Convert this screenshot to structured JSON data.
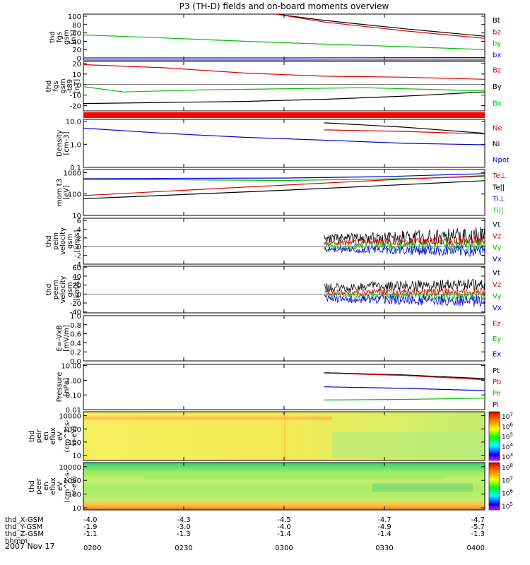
{
  "title": "P3 (TH-D) fields and on-board moments overview",
  "date": "2007 Nov 17",
  "chart_data": {
    "type": "line",
    "time_axis": {
      "ticks": [
        "0200",
        "0230",
        "0300",
        "0330",
        "0400"
      ],
      "range_hhmm": [
        "0200",
        "0400"
      ],
      "rows": [
        {
          "label": "thd_X-GSM",
          "values": [
            "-4.0",
            "-4.3",
            "-4.5",
            "-4.7",
            "-4.7"
          ]
        },
        {
          "label": "thd_Y-GSM",
          "values": [
            "-1.9",
            "-3.0",
            "-4.0",
            "-4.9",
            "-5.7"
          ]
        },
        {
          "label": "thd_Z-GSM",
          "values": [
            "-1.1",
            "-1.3",
            "-1.4",
            "-1.4",
            "-1.3"
          ]
        },
        {
          "label": "hhmm",
          "values": []
        }
      ]
    },
    "panels": [
      {
        "id": "fgs-gsm",
        "ylabel": [
          "thd",
          "fgs",
          "gsm",
          "[nT]"
        ],
        "scale": "linear",
        "ylim": [
          -5,
          105
        ],
        "ticks": [
          {
            "v": 100,
            "t": "100"
          },
          {
            "v": 80,
            "t": "80"
          },
          {
            "v": 60,
            "t": "60"
          },
          {
            "v": 40,
            "t": "40"
          },
          {
            "v": 20,
            "t": "20"
          },
          {
            "v": 0,
            "t": "0"
          }
        ],
        "legend": [
          {
            "t": "Bt",
            "c": "#000000"
          },
          {
            "t": "bz",
            "c": "#e00000"
          },
          {
            "t": "by",
            "c": "#00c000"
          },
          {
            "t": "bx",
            "c": "#0000e0"
          }
        ],
        "series": [
          {
            "name": "Bt",
            "color": "#000000",
            "x": [
              0.48,
              0.6,
              0.8,
              1.0
            ],
            "y": [
              105,
              90,
              70,
              52
            ]
          },
          {
            "name": "bz",
            "color": "#e00000",
            "x": [
              0.48,
              0.6,
              0.8,
              1.0
            ],
            "y": [
              105,
              86,
              65,
              47
            ]
          },
          {
            "name": "by",
            "color": "#00c000",
            "x": [
              0,
              0.2,
              0.4,
              0.6,
              0.8,
              1.0
            ],
            "y": [
              55,
              48,
              40,
              33,
              27,
              20
            ]
          },
          {
            "name": "bx",
            "color": "#0000e0",
            "x": [
              0,
              0.5,
              1.0
            ],
            "y": [
              0,
              0,
              1
            ]
          }
        ]
      },
      {
        "id": "fgs-gsm-tsf",
        "ylabel": [
          "thd",
          "fgs",
          "gsm",
          "-t89",
          "[nT]"
        ],
        "scale": "linear",
        "ylim": [
          -25,
          22
        ],
        "ticks": [
          {
            "v": 20,
            "t": "20"
          },
          {
            "v": 10,
            "t": "10"
          },
          {
            "v": 0,
            "t": "0"
          },
          {
            "v": -10,
            "t": "-10"
          },
          {
            "v": -20,
            "t": "-20"
          }
        ],
        "legend": [
          {
            "t": "Bz",
            "c": "#e00000"
          },
          {
            "t": "By",
            "c": "#000000"
          },
          {
            "t": "Bx",
            "c": "#00c000"
          }
        ],
        "series": [
          {
            "name": "Bz",
            "color": "#e00000",
            "x": [
              0,
              0.2,
              0.4,
              0.6,
              0.8,
              1.0
            ],
            "y": [
              19,
              16,
              11,
              8,
              7,
              5
            ]
          },
          {
            "name": "Bx",
            "color": "#00c000",
            "x": [
              0,
              0.1,
              0.3,
              0.5,
              0.7,
              1.0
            ],
            "y": [
              -2,
              -7,
              -5,
              -4,
              -3,
              -6
            ]
          },
          {
            "name": "By",
            "color": "#000000",
            "x": [
              0,
              0.2,
              0.4,
              0.6,
              0.8,
              1.0
            ],
            "y": [
              -18,
              -17,
              -16,
              -14,
              -11,
              -7
            ]
          }
        ]
      },
      {
        "id": "mode-bar",
        "ylabel": [],
        "scale": "bar",
        "ylim": [
          0,
          1
        ],
        "ticks": [],
        "legend": [],
        "series": []
      },
      {
        "id": "density",
        "ylabel": [
          "Density",
          "[cm-3]"
        ],
        "scale": "log",
        "ylim": [
          0.1,
          12
        ],
        "ticks": [
          {
            "v": 10,
            "t": "10.0"
          },
          {
            "v": 1,
            "t": "1.0"
          },
          {
            "v": 0.1,
            "t": "0.1"
          }
        ],
        "legend": [
          {
            "t": "Ne",
            "c": "#e00000"
          },
          {
            "t": "Ni",
            "c": "#000000"
          },
          {
            "t": "Npot",
            "c": "#0000e0"
          }
        ],
        "series": [
          {
            "name": "Npot",
            "color": "#0000e0",
            "x": [
              0,
              0.2,
              0.4,
              0.6,
              0.8,
              1.0
            ],
            "y": [
              5.0,
              3.0,
              2.0,
              1.5,
              1.1,
              0.95
            ]
          },
          {
            "name": "Ni",
            "color": "#000000",
            "x": [
              0.6,
              0.8,
              1.0
            ],
            "y": [
              8.5,
              5.5,
              3.0
            ]
          },
          {
            "name": "Ne",
            "color": "#e00000",
            "x": [
              0.6,
              0.8,
              1.0
            ],
            "y": [
              4.2,
              3.6,
              2.8
            ]
          }
        ]
      },
      {
        "id": "mom-temp",
        "ylabel": [
          "mom t3",
          "[eV]"
        ],
        "scale": "log",
        "ylim": [
          10,
          1400
        ],
        "ticks": [
          {
            "v": 1000,
            "t": "1000"
          },
          {
            "v": 100,
            "t": "100"
          },
          {
            "v": 10,
            "t": "10"
          }
        ],
        "legend": [
          {
            "t": "Te⊥",
            "c": "#e00000"
          },
          {
            "t": "Te||",
            "c": "#000000"
          },
          {
            "t": "Ti⊥",
            "c": "#0000e0"
          },
          {
            "t": "Ti||",
            "c": "#00c000"
          }
        ],
        "series": [
          {
            "name": "Ti⊥",
            "color": "#0000e0",
            "x": [
              0,
              0.25,
              0.5,
              0.75,
              1.0
            ],
            "y": [
              520,
              540,
              560,
              650,
              900
            ]
          },
          {
            "name": "Ti||",
            "color": "#00c000",
            "x": [
              0,
              0.25,
              0.5,
              0.75,
              1.0
            ],
            "y": [
              480,
              460,
              430,
              500,
              650
            ]
          },
          {
            "name": "Te⊥",
            "color": "#e00000",
            "x": [
              0,
              0.25,
              0.5,
              0.75,
              1.0
            ],
            "y": [
              85,
              150,
              260,
              450,
              720
            ]
          },
          {
            "name": "Te||",
            "color": "#000000",
            "x": [
              0,
              0.25,
              0.5,
              0.75,
              1.0
            ],
            "y": [
              60,
              95,
              150,
              250,
              420
            ]
          }
        ]
      },
      {
        "id": "peim-velocity",
        "ylabel": [
          "thd",
          "peim",
          "velocity",
          "gsm",
          "[km/s]"
        ],
        "scale": "linear",
        "ylim": [
          -4,
          6.5
        ],
        "ticks": [
          {
            "v": 6,
            "t": "6"
          },
          {
            "v": 4,
            "t": "4"
          },
          {
            "v": 2,
            "t": "2"
          },
          {
            "v": 0,
            "t": "0"
          },
          {
            "v": -2,
            "t": "-2"
          },
          {
            "v": -4,
            "t": "-4"
          }
        ],
        "legend": [
          {
            "t": "Vt",
            "c": "#000000"
          },
          {
            "t": "Vz",
            "c": "#e00000"
          },
          {
            "t": "Vy",
            "c": "#00c000"
          },
          {
            "t": "Vx",
            "c": "#0000e0"
          }
        ],
        "noisy": [
          {
            "name": "Vt",
            "color": "#000000",
            "x0": 0.6,
            "x1": 1.0,
            "mean0": 1.8,
            "mean1": 2.4,
            "amp0": 1.0,
            "amp1": 2.2
          },
          {
            "name": "Vz",
            "color": "#e00000",
            "x0": 0.6,
            "x1": 1.0,
            "mean0": 0.8,
            "mean1": 1.4,
            "amp0": 0.6,
            "amp1": 1.2
          },
          {
            "name": "Vy",
            "color": "#00c000",
            "x0": 0.6,
            "x1": 1.0,
            "mean0": 0.0,
            "mean1": 0.3,
            "amp0": 0.8,
            "amp1": 1.6
          },
          {
            "name": "Vx",
            "color": "#0000e0",
            "x0": 0.6,
            "x1": 1.0,
            "mean0": -0.6,
            "mean1": -1.0,
            "amp0": 0.6,
            "amp1": 1.5
          }
        ],
        "series": []
      },
      {
        "id": "peem-velocity",
        "ylabel": [
          "thd",
          "peem",
          "velocity",
          "gsm",
          "[km/s]"
        ],
        "scale": "linear",
        "ylim": [
          -42,
          62
        ],
        "ticks": [
          {
            "v": 60,
            "t": "60"
          },
          {
            "v": 40,
            "t": "40"
          },
          {
            "v": 20,
            "t": "20"
          },
          {
            "v": 0,
            "t": "0"
          },
          {
            "v": -20,
            "t": "-20"
          },
          {
            "v": -40,
            "t": "-40"
          }
        ],
        "legend": [
          {
            "t": "Vt",
            "c": "#000000"
          },
          {
            "t": "Vz",
            "c": "#e00000"
          },
          {
            "t": "Vy",
            "c": "#00c000"
          },
          {
            "t": "Vx",
            "c": "#0000e0"
          }
        ],
        "noisy": [
          {
            "name": "Vt",
            "color": "#000000",
            "x0": 0.6,
            "x1": 1.0,
            "mean0": 14,
            "mean1": 22,
            "amp0": 10,
            "amp1": 14
          },
          {
            "name": "Vz",
            "color": "#e00000",
            "x0": 0.6,
            "x1": 1.0,
            "mean0": 3,
            "mean1": 5,
            "amp0": 6,
            "amp1": 9
          },
          {
            "name": "Vy",
            "color": "#00c000",
            "x0": 0.6,
            "x1": 1.0,
            "mean0": -3,
            "mean1": -5,
            "amp0": 6,
            "amp1": 10
          },
          {
            "name": "Vx",
            "color": "#0000e0",
            "x0": 0.6,
            "x1": 1.0,
            "mean0": -10,
            "mean1": -16,
            "amp0": 8,
            "amp1": 14
          }
        ],
        "series": []
      },
      {
        "id": "e-vxb",
        "ylabel": [
          "E=-VxB",
          "[mV/m]"
        ],
        "scale": "linear",
        "ylim": [
          0,
          1
        ],
        "ticks": [
          {
            "v": 1.0,
            "t": "1.0"
          },
          {
            "v": 0.8,
            "t": "0.8"
          },
          {
            "v": 0.6,
            "t": "0.6"
          },
          {
            "v": 0.4,
            "t": "0.4"
          },
          {
            "v": 0.2,
            "t": "0.2"
          },
          {
            "v": 0.0,
            "t": "0.0"
          }
        ],
        "legend": [
          {
            "t": "Ez",
            "c": "#e00000"
          },
          {
            "t": "Ey",
            "c": "#00c000"
          },
          {
            "t": "Ex",
            "c": "#0000e0"
          }
        ],
        "series": []
      },
      {
        "id": "pressure",
        "ylabel": [
          "Pressure",
          "[nPa]"
        ],
        "scale": "log",
        "ylim": [
          0.01,
          12
        ],
        "ticks": [
          {
            "v": 10,
            "t": "10.00"
          },
          {
            "v": 1,
            "t": "1.00"
          },
          {
            "v": 0.1,
            "t": "0.10"
          },
          {
            "v": 0.01,
            "t": "0.01"
          }
        ],
        "legend": [
          {
            "t": "Pt",
            "c": "#000000"
          },
          {
            "t": "Pb",
            "c": "#e00000"
          },
          {
            "t": "Pe",
            "c": "#00c000"
          },
          {
            "t": "Pi",
            "c": "#0000e0"
          }
        ],
        "series": [
          {
            "name": "Pt",
            "color": "#000000",
            "x": [
              0.6,
              0.8,
              1.0
            ],
            "y": [
              3.3,
              2.3,
              1.3
            ]
          },
          {
            "name": "Pb",
            "color": "#e00000",
            "x": [
              0.6,
              0.8,
              1.0
            ],
            "y": [
              3.1,
              2.1,
              1.1
            ]
          },
          {
            "name": "Pi",
            "color": "#0000e0",
            "x": [
              0.6,
              0.8,
              1.0
            ],
            "y": [
              0.36,
              0.28,
              0.2
            ]
          },
          {
            "name": "Pe",
            "color": "#00c000",
            "x": [
              0.6,
              0.8,
              1.0
            ],
            "y": [
              0.045,
              0.05,
              0.06
            ]
          }
        ]
      },
      {
        "id": "peir-spec",
        "ylabel": [
          "thd",
          "peir",
          "en",
          "eflux",
          "eV",
          "(cm^2-s-",
          "sr-eV)"
        ],
        "scale": "spec",
        "ylim": [
          4,
          20000
        ],
        "ticks": [
          {
            "v": 10000,
            "t": "10000"
          },
          {
            "v": 1000,
            "t": "1000"
          },
          {
            "v": 100,
            "t": "100"
          },
          {
            "v": 10,
            "t": "10"
          }
        ],
        "colorbar": [
          {
            "t": "10",
            "e": "7"
          },
          {
            "t": "10",
            "e": "6"
          },
          {
            "t": "10",
            "e": "5"
          },
          {
            "t": "10",
            "e": "4"
          },
          {
            "t": "10",
            "e": "3"
          }
        ],
        "series": []
      },
      {
        "id": "peer-spec",
        "ylabel": [
          "thd",
          "peer",
          "en",
          "eflux",
          "eV",
          "(cm^2-s-",
          "sr-eV)"
        ],
        "scale": "spec",
        "ylim": [
          7,
          20000
        ],
        "ticks": [
          {
            "v": 10000,
            "t": "10000"
          },
          {
            "v": 1000,
            "t": "1000"
          },
          {
            "v": 100,
            "t": "100"
          },
          {
            "v": 10,
            "t": "10"
          }
        ],
        "colorbar": [
          {
            "t": "10",
            "e": "8"
          },
          {
            "t": "10",
            "e": "7"
          },
          {
            "t": "10",
            "e": "6"
          },
          {
            "t": "10",
            "e": "5"
          }
        ],
        "series": []
      }
    ]
  }
}
